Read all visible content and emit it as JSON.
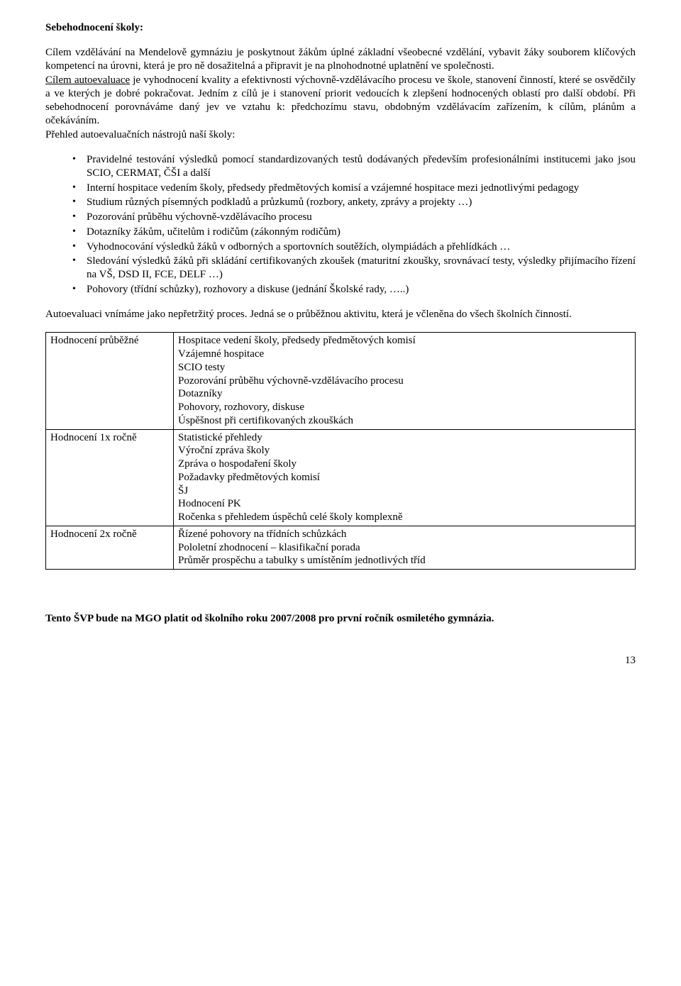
{
  "heading": "Sebehodnocení školy:",
  "intro_para": "Cílem vzdělávání na Mendelově gymnáziu je poskytnout žákům úplné základní všeobecné vzdělání, vybavit žáky souborem klíčových kompetencí na úrovni, která je pro ně dosažitelná a připravit je na plnohodnotné uplatnění ve společnosti.",
  "auto_label": "Cílem autoevaluace",
  "auto_rest": " je vyhodnocení kvality a efektivnosti výchovně-vzdělávacího procesu ve škole, stanovení činností, které se osvědčily a ve kterých je dobré pokračovat. Jedním z cílů je i stanovení priorit vedoucích k zlepšení hodnocených oblastí pro další období. Při sebehodnocení porovnáváme daný jev ve vztahu k: předchozímu stavu, obdobným vzdělávacím zařízením, k cílům, plánům a očekáváním.",
  "tools_intro": "Přehled autoevaluačních nástrojů naší školy:",
  "bullets": [
    "Pravidelné testování výsledků pomocí standardizovaných testů dodávaných především profesionálními institucemi jako jsou SCIO, CERMAT, ČŠI a další",
    "Interní hospitace vedením školy, předsedy předmětových komisí a vzájemné hospitace mezi jednotlivými pedagogy",
    "Studium různých písemných podkladů a průzkumů (rozbory, ankety, zprávy a projekty …)",
    "Pozorování průběhu výchovně-vzdělávacího procesu",
    "Dotazníky žákům, učitelům i rodičům (zákonným rodičům)",
    "Vyhodnocování výsledků žáků v odborných a sportovních soutěžích, olympiádách a přehlídkách …",
    "Sledování výsledků žáků při skládání certifikovaných zkoušek (maturitní zkoušky, srovnávací testy, výsledky přijímacího řízení na VŠ, DSD II, FCE, DELF …)",
    "Pohovory (třídní schůzky), rozhovory a diskuse (jednání Školské rady, …..)"
  ],
  "mid_para": "Autoevaluaci vnímáme jako nepřetržitý proces. Jedná se o průběžnou aktivitu, která je včleněna do všech školních činností.",
  "table": {
    "rows": [
      {
        "left": "Hodnocení průběžné",
        "right": [
          "Hospitace vedení školy, předsedy předmětových komisí",
          "Vzájemné hospitace",
          "SCIO testy",
          "Pozorování průběhu výchovně-vzdělávacího procesu",
          "Dotazníky",
          "Pohovory, rozhovory, diskuse",
          "Úspěšnost při certifikovaných zkouškách"
        ]
      },
      {
        "left": "Hodnocení 1x ročně",
        "right": [
          "Statistické přehledy",
          "Výroční zpráva školy",
          "Zpráva o hospodaření školy",
          "Požadavky předmětových komisí",
          "ŠJ",
          "Hodnocení PK",
          "Ročenka s přehledem úspěchů celé školy komplexně"
        ]
      },
      {
        "left": "Hodnocení 2x ročně",
        "right": [
          "Řízené pohovory na třídních schůzkách",
          "Pololetní zhodnocení – klasifikační porada",
          "Průměr prospěchu a tabulky s umístěním jednotlivých tříd"
        ]
      }
    ]
  },
  "footer": "Tento ŠVP bude na MGO platit od školního roku 2007/2008 pro první ročník osmiletého gymnázia.",
  "page_num": "13"
}
